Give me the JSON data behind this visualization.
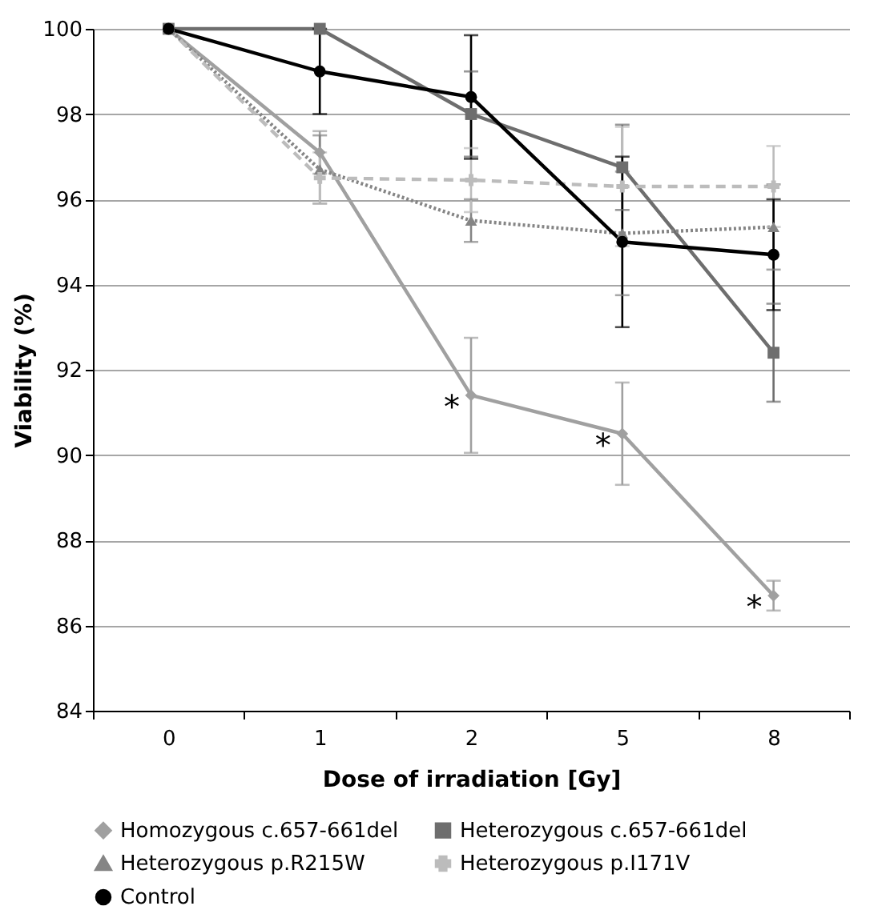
{
  "chart_data": {
    "type": "line",
    "xlabel": "Dose of irradiation [Gy]",
    "ylabel": "Viability (%)",
    "categories": [
      "0",
      "1",
      "2",
      "5",
      "8"
    ],
    "ylim": [
      84,
      100
    ],
    "yticks": [
      84,
      86,
      88,
      90,
      92,
      94,
      96,
      98,
      100
    ],
    "grid": "y",
    "legend": "bottom",
    "series": [
      {
        "name": "Homozygous c.657-661del",
        "color": "#a0a0a0",
        "marker": "diamond",
        "line_style": "solid",
        "values": [
          100,
          97.1,
          91.4,
          90.5,
          86.7
        ],
        "errors": [
          null,
          0.5,
          1.35,
          1.2,
          0.35
        ]
      },
      {
        "name": "Heterozygous c.657-661del",
        "color": "#6e6e6e",
        "marker": "square",
        "line_style": "solid",
        "values": [
          100,
          100,
          98.0,
          96.75,
          92.4
        ],
        "errors": [
          null,
          null,
          1.0,
          1.0,
          1.15
        ]
      },
      {
        "name": "Heterozygous p.R215W",
        "color": "#858585",
        "marker": "triangle",
        "line_style": "dotted",
        "values": [
          100,
          96.7,
          95.5,
          95.2,
          95.35
        ],
        "errors": [
          null,
          0.8,
          0.5,
          1.45,
          1.0
        ]
      },
      {
        "name": "Heterozygous p.I171V",
        "color": "#bcbcbc",
        "marker": "cross",
        "line_style": "dashed",
        "values": [
          100,
          96.5,
          96.45,
          96.3,
          96.3
        ],
        "errors": [
          null,
          0.6,
          0.75,
          1.4,
          0.95
        ]
      },
      {
        "name": "Control",
        "color": "#000000",
        "marker": "circle",
        "line_style": "solid",
        "values": [
          100,
          99.0,
          98.4,
          95.0,
          94.7
        ],
        "errors": [
          null,
          1.0,
          1.45,
          2.0,
          1.3
        ]
      }
    ],
    "annotations": [
      {
        "text": "*",
        "x": "2",
        "y": 91.4
      },
      {
        "text": "*",
        "x": "5",
        "y": 90.5
      },
      {
        "text": "*",
        "x": "8",
        "y": 86.7
      }
    ]
  }
}
